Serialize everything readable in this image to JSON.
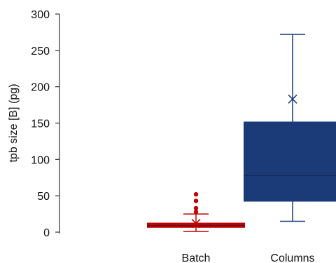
{
  "chart_data": {
    "type": "box",
    "title": "",
    "xlabel": "",
    "ylabel": "tpb size [B] (pg)",
    "ylim": [
      0,
      300
    ],
    "yticks": [
      0,
      50,
      100,
      150,
      200,
      250,
      300
    ],
    "grid": false,
    "categories": [
      "Batch",
      "Columns"
    ],
    "boxes": [
      {
        "category": "Batch",
        "color": "#c00000",
        "whisker_low": 1,
        "q1": 6,
        "median": 9,
        "q3": 13,
        "whisker_high": 25,
        "mean": 12,
        "outliers": [
          28,
          33,
          43,
          52
        ]
      },
      {
        "category": "Columns",
        "color": "#1a3a78",
        "whisker_low": 15,
        "q1": 42,
        "median": 78,
        "q3": 152,
        "whisker_high": 272,
        "mean": 183,
        "outliers": []
      }
    ]
  }
}
